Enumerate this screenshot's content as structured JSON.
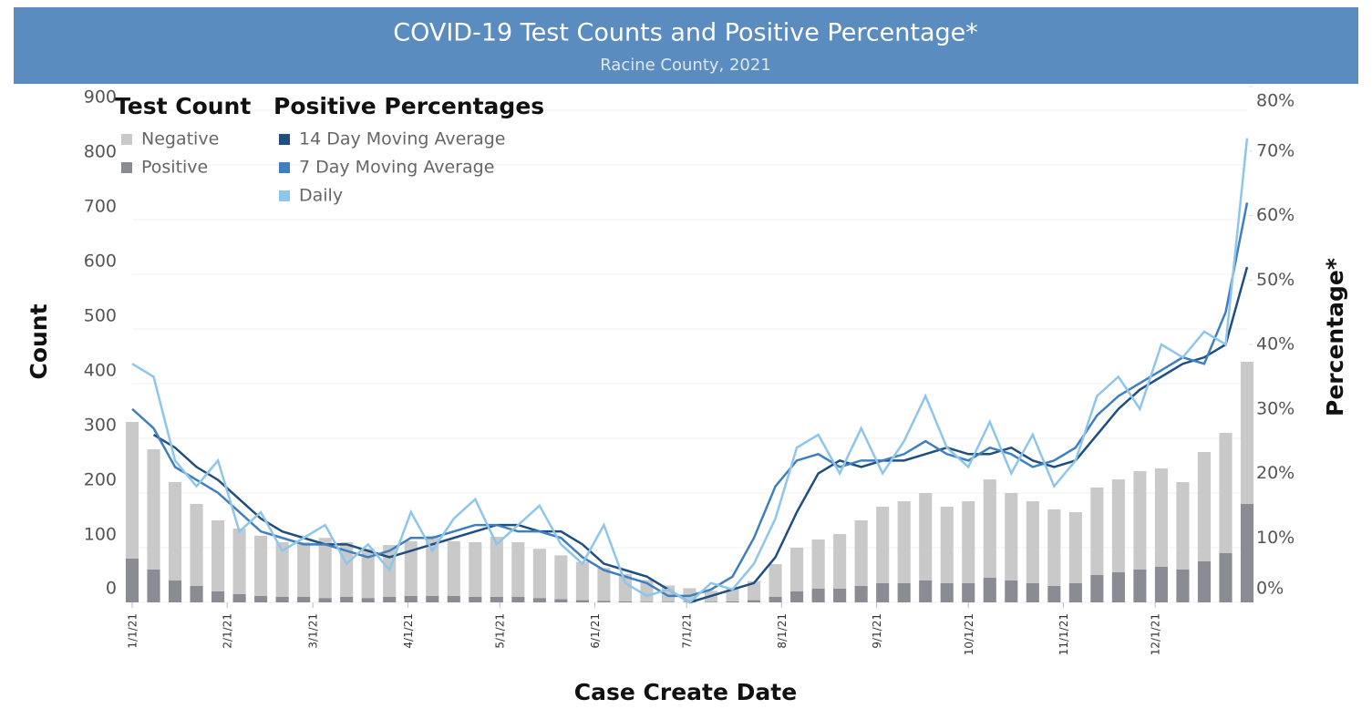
{
  "chart_data": {
    "type": "bar-line",
    "title": "COVID-19 Test Counts and Positive Percentage*",
    "subtitle": "Racine County, 2021",
    "legend_titles": [
      "Test Count",
      "Positive Percentages"
    ],
    "xlabel": "Case Create Date",
    "ylabel": "Count",
    "y2label": "Percentage*",
    "x": [
      0,
      7,
      14,
      21,
      28,
      35,
      42,
      49,
      56,
      63,
      70,
      77,
      84,
      91,
      98,
      105,
      112,
      119,
      126,
      133,
      140,
      147,
      154,
      161,
      168,
      175,
      182,
      189,
      196,
      203,
      210,
      217,
      224,
      231,
      238,
      245,
      252,
      259,
      266,
      273,
      280,
      287,
      294,
      301,
      308,
      315,
      322,
      329,
      336,
      343,
      350,
      357,
      364
    ],
    "xlim": [
      0,
      364
    ],
    "xticks": [
      {
        "value": 0,
        "label": "1/1/21"
      },
      {
        "value": 31,
        "label": "2/1/21"
      },
      {
        "value": 59,
        "label": "3/1/21"
      },
      {
        "value": 90,
        "label": "4/1/21"
      },
      {
        "value": 120,
        "label": "5/1/21"
      },
      {
        "value": 151,
        "label": "6/1/21"
      },
      {
        "value": 181,
        "label": "7/1/21"
      },
      {
        "value": 212,
        "label": "8/1/21"
      },
      {
        "value": 243,
        "label": "9/1/21"
      },
      {
        "value": 273,
        "label": "10/1/21"
      },
      {
        "value": 304,
        "label": "11/1/21"
      },
      {
        "value": 334,
        "label": "12/1/21"
      }
    ],
    "ylim": [
      0,
      900
    ],
    "yticks": [
      0,
      100,
      200,
      300,
      400,
      500,
      600,
      700,
      800,
      900
    ],
    "y2lim": [
      0,
      80
    ],
    "y2ticks": [
      {
        "value": 0,
        "label": "0%"
      },
      {
        "value": 10,
        "label": "10%"
      },
      {
        "value": 20,
        "label": "20%"
      },
      {
        "value": 30,
        "label": "30%"
      },
      {
        "value": 40,
        "label": "40%"
      },
      {
        "value": 50,
        "label": "50%"
      },
      {
        "value": 60,
        "label": "60%"
      },
      {
        "value": 70,
        "label": "70%"
      },
      {
        "value": 80,
        "label": "80%"
      }
    ],
    "grid": true,
    "series": [
      {
        "name": "Negative",
        "kind": "bar",
        "color": "#c9c9c9",
        "values": [
          250,
          220,
          180,
          150,
          130,
          120,
          110,
          100,
          100,
          110,
          100,
          90,
          95,
          100,
          110,
          100,
          100,
          110,
          100,
          90,
          80,
          70,
          60,
          50,
          40,
          30,
          25,
          20,
          25,
          35,
          60,
          80,
          90,
          100,
          120,
          140,
          150,
          160,
          140,
          150,
          180,
          160,
          150,
          140,
          130,
          160,
          170,
          180,
          180,
          160,
          200,
          220,
          260
        ]
      },
      {
        "name": "Positive",
        "kind": "bar",
        "color": "#8a8b93",
        "values": [
          80,
          60,
          40,
          30,
          20,
          15,
          12,
          10,
          10,
          8,
          10,
          8,
          10,
          12,
          12,
          12,
          10,
          10,
          10,
          8,
          6,
          4,
          3,
          2,
          1,
          1,
          1,
          1,
          2,
          4,
          10,
          20,
          25,
          25,
          30,
          35,
          35,
          40,
          35,
          35,
          45,
          40,
          35,
          30,
          35,
          50,
          55,
          60,
          65,
          60,
          75,
          90,
          180
        ]
      },
      {
        "name": "14 Day Moving Average",
        "kind": "line",
        "axis": "y2",
        "color": "#1f4e7f",
        "values": [
          null,
          26,
          24,
          21,
          19,
          16,
          13,
          11,
          10,
          9,
          9,
          8,
          7,
          8,
          9,
          10,
          11,
          12,
          12,
          11,
          11,
          9,
          6,
          5,
          4,
          2,
          0,
          1,
          2,
          3,
          7,
          14,
          20,
          22,
          21,
          22,
          22,
          23,
          24,
          23,
          23,
          24,
          22,
          21,
          22,
          26,
          30,
          33,
          35,
          37,
          38,
          40,
          52
        ]
      },
      {
        "name": "7 Day Moving Average",
        "kind": "line",
        "axis": "y2",
        "color": "#3f7fbf",
        "values": [
          30,
          27,
          21,
          19,
          17,
          14,
          11,
          10,
          9,
          9,
          8,
          7,
          8,
          10,
          10,
          11,
          12,
          12,
          11,
          11,
          10,
          7,
          5,
          4,
          3,
          1,
          1,
          2,
          4,
          10,
          18,
          22,
          23,
          21,
          22,
          22,
          23,
          25,
          23,
          22,
          24,
          23,
          21,
          22,
          24,
          29,
          32,
          34,
          36,
          38,
          37,
          45,
          62
        ]
      },
      {
        "name": "Daily",
        "kind": "line",
        "axis": "y2",
        "color": "#8ec5ea",
        "values": [
          37,
          35,
          22,
          18,
          22,
          11,
          14,
          8,
          10,
          12,
          6,
          9,
          5,
          14,
          8,
          13,
          16,
          9,
          12,
          15,
          9,
          6,
          12,
          3,
          1,
          2,
          0,
          3,
          2,
          6,
          13,
          24,
          26,
          20,
          27,
          20,
          25,
          32,
          24,
          21,
          28,
          20,
          26,
          18,
          22,
          32,
          35,
          30,
          40,
          38,
          42,
          40,
          72
        ]
      }
    ]
  }
}
